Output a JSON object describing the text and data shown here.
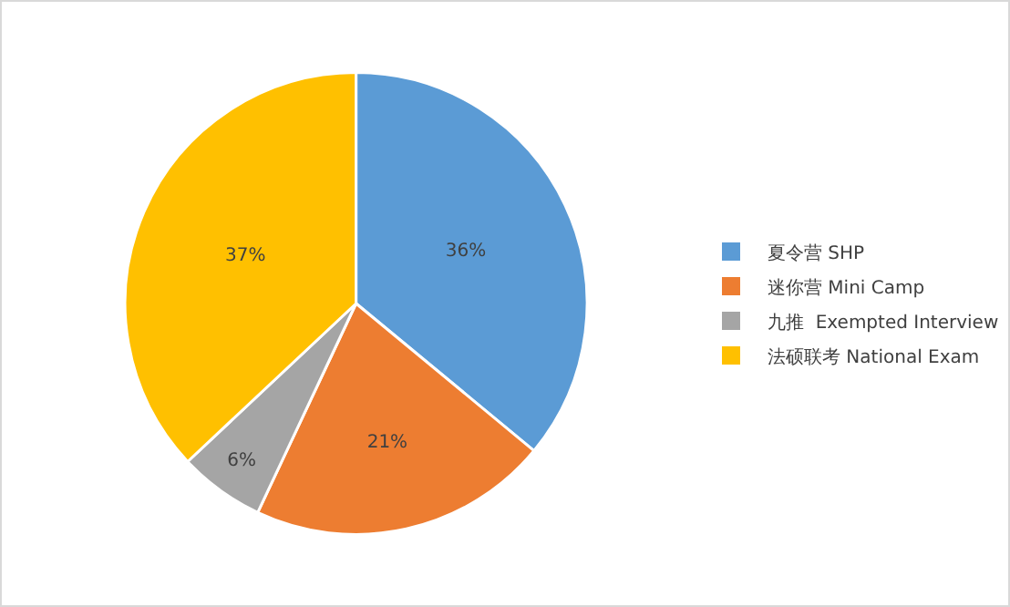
{
  "chart_data": {
    "type": "pie",
    "categories": [
      "夏令营 SHP",
      "迷你营 Mini Camp",
      "九推  Exempted Interview",
      "法硕联考 National Exam"
    ],
    "values": [
      36,
      21,
      6,
      37
    ],
    "value_labels": [
      "36%",
      "21%",
      "6%",
      "37%"
    ],
    "colors": [
      "#5b9bd5",
      "#ed7d31",
      "#a5a5a5",
      "#ffc000"
    ],
    "legend": "right"
  }
}
